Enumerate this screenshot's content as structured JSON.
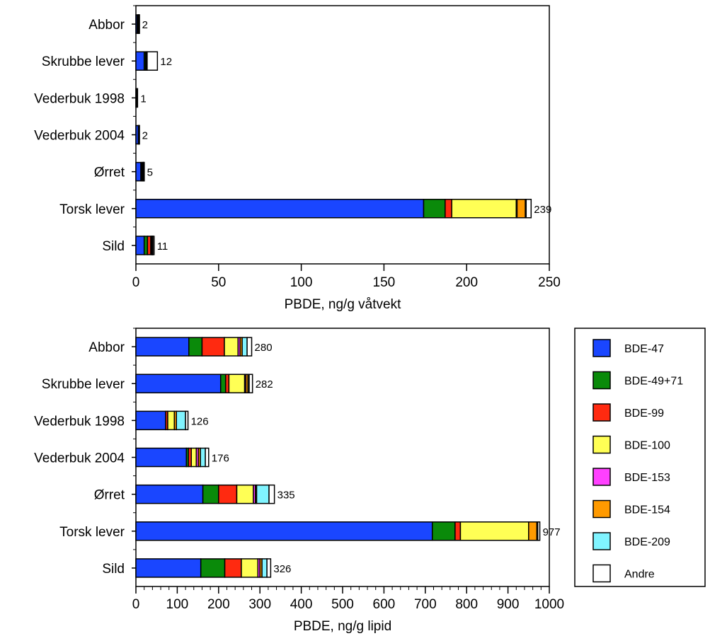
{
  "colors": {
    "BDE-47": "#1a46ff",
    "BDE-49+71": "#0a8a0a",
    "BDE-99": "#ff2a10",
    "BDE-100": "#ffff55",
    "BDE-153": "#ff40ff",
    "BDE-154": "#ff9a00",
    "BDE-209": "#80f4ff",
    "Andre": "#ffffff"
  },
  "legend": [
    "BDE-47",
    "BDE-49+71",
    "BDE-99",
    "BDE-100",
    "BDE-153",
    "BDE-154",
    "BDE-209",
    "Andre"
  ],
  "chart_data": [
    {
      "type": "bar",
      "orientation": "horizontal",
      "stacked": true,
      "title": "",
      "xlabel": "PBDE, ng/g våtvekt",
      "xlim": [
        0,
        250
      ],
      "xticks": [
        "0",
        "50",
        "100",
        "150",
        "200",
        "250"
      ],
      "minor_ticks": false,
      "categories": [
        "Abbor",
        "Skrubbe lever",
        "Vederbuk 1998",
        "Vederbuk 2004",
        "Ørret",
        "Torsk lever",
        "Sild"
      ],
      "totals": [
        "2",
        "12",
        "1",
        "2",
        "5",
        "239",
        "11"
      ],
      "series": [
        {
          "name": "BDE-47",
          "values": [
            0.8,
            5,
            0.5,
            1.5,
            3,
            174,
            5
          ]
        },
        {
          "name": "BDE-49+71",
          "values": [
            0.3,
            0.8,
            0.1,
            0.2,
            0.6,
            13,
            2
          ]
        },
        {
          "name": "BDE-99",
          "values": [
            0.3,
            0.3,
            0,
            0.1,
            0.4,
            4,
            2
          ]
        },
        {
          "name": "BDE-100",
          "values": [
            0.2,
            0.3,
            0.1,
            0.1,
            0.4,
            39,
            0.6
          ]
        },
        {
          "name": "BDE-153",
          "values": [
            0.1,
            0.1,
            0,
            0,
            0.1,
            0.5,
            0.2
          ]
        },
        {
          "name": "BDE-154",
          "values": [
            0.1,
            0.2,
            0,
            0,
            0.2,
            5,
            0.3
          ]
        },
        {
          "name": "BDE-209",
          "values": [
            0.1,
            0.1,
            0,
            0.1,
            0.1,
            0.5,
            0.2
          ]
        },
        {
          "name": "Andre",
          "values": [
            0.1,
            6.2,
            0.3,
            0,
            0.2,
            3,
            0.7
          ]
        }
      ]
    },
    {
      "type": "bar",
      "orientation": "horizontal",
      "stacked": true,
      "title": "",
      "xlabel": "PBDE, ng/g lipid",
      "xlim": [
        0,
        1000
      ],
      "xticks": [
        "0",
        "100",
        "200",
        "300",
        "400",
        "500",
        "600",
        "700",
        "800",
        "900",
        "1000"
      ],
      "minor_ticks": true,
      "categories": [
        "Abbor",
        "Skrubbe lever",
        "Vederbuk 1998",
        "Vederbuk 2004",
        "Ørret",
        "Torsk lever",
        "Sild"
      ],
      "totals": [
        "280",
        "282",
        "126",
        "176",
        "335",
        "977",
        "326"
      ],
      "series": [
        {
          "name": "BDE-47",
          "values": [
            128,
            205,
            72,
            122,
            162,
            717,
            157
          ]
        },
        {
          "name": "BDE-49+71",
          "values": [
            32,
            12,
            0,
            5,
            38,
            55,
            58
          ]
        },
        {
          "name": "BDE-99",
          "values": [
            54,
            8,
            5,
            7,
            44,
            13,
            40
          ]
        },
        {
          "name": "BDE-100",
          "values": [
            33,
            38,
            16,
            12,
            40,
            165,
            40
          ]
        },
        {
          "name": "BDE-153",
          "values": [
            5,
            3,
            0,
            5,
            5,
            0,
            5
          ]
        },
        {
          "name": "BDE-154",
          "values": [
            5,
            5,
            5,
            5,
            3,
            20,
            5
          ]
        },
        {
          "name": "BDE-209",
          "values": [
            12,
            3,
            22,
            12,
            30,
            2,
            12
          ]
        },
        {
          "name": "Andre",
          "values": [
            11,
            8,
            6,
            8,
            13,
            5,
            9
          ]
        }
      ]
    }
  ]
}
